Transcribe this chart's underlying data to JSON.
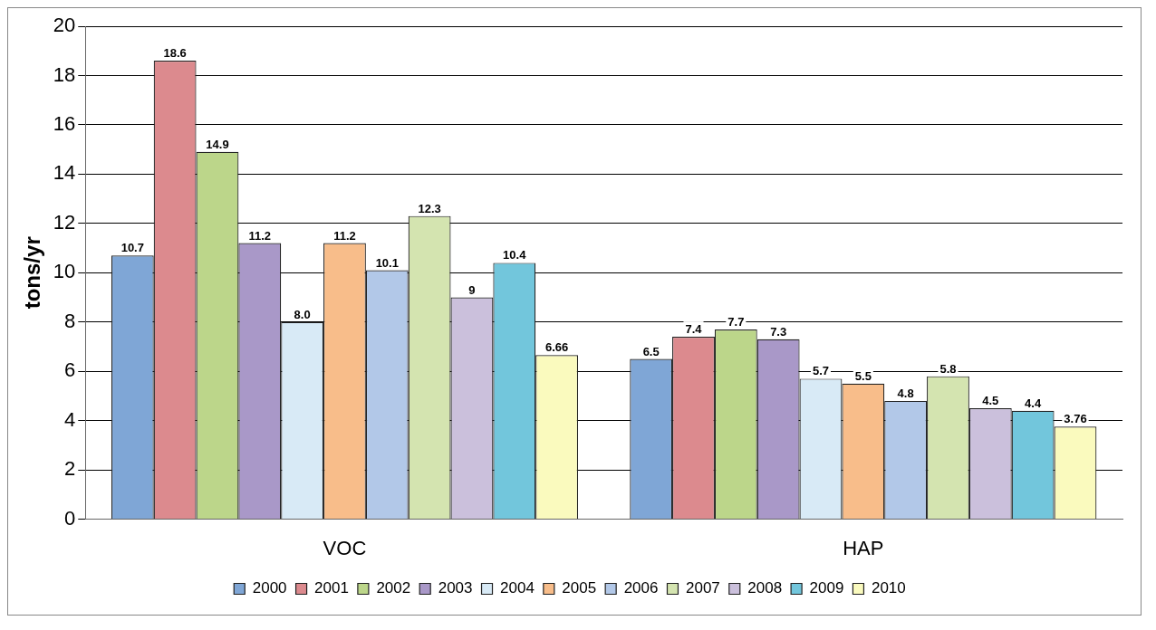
{
  "chart_data": {
    "type": "bar",
    "ylabel": "tons/yr",
    "categories": [
      "VOC",
      "HAP"
    ],
    "ylim": [
      0,
      20
    ],
    "yticks": [
      0,
      2,
      4,
      6,
      8,
      10,
      12,
      14,
      16,
      18,
      20
    ],
    "grid": "y",
    "legend": "bottom",
    "series": [
      {
        "name": "2000",
        "color": "#7fa6d6",
        "values": [
          10.7,
          6.5
        ],
        "value_labels": [
          "10.7",
          "6.5"
        ]
      },
      {
        "name": "2001",
        "color": "#dc8a8e",
        "values": [
          18.6,
          7.4
        ],
        "value_labels": [
          "18.6",
          "7.4"
        ]
      },
      {
        "name": "2002",
        "color": "#bcd68a",
        "values": [
          14.9,
          7.7
        ],
        "value_labels": [
          "14.9",
          "7.7"
        ]
      },
      {
        "name": "2003",
        "color": "#a998c8",
        "values": [
          11.2,
          7.3
        ],
        "value_labels": [
          "11.2",
          "7.3"
        ]
      },
      {
        "name": "2004",
        "color": "#d8eaf6",
        "values": [
          8.0,
          5.7
        ],
        "value_labels": [
          "8.0",
          "5.7"
        ]
      },
      {
        "name": "2005",
        "color": "#f8bd8a",
        "values": [
          11.2,
          5.5
        ],
        "value_labels": [
          "11.2",
          "5.5"
        ]
      },
      {
        "name": "2006",
        "color": "#b2c8e8",
        "values": [
          10.1,
          4.8
        ],
        "value_labels": [
          "10.1",
          "4.8"
        ]
      },
      {
        "name": "2007",
        "color": "#d4e4b0",
        "values": [
          12.3,
          5.8
        ],
        "value_labels": [
          "12.3",
          "5.8"
        ]
      },
      {
        "name": "2008",
        "color": "#cbc0dc",
        "values": [
          9,
          4.5
        ],
        "value_labels": [
          "9",
          "4.5"
        ]
      },
      {
        "name": "2009",
        "color": "#72c6dc",
        "values": [
          10.4,
          4.4
        ],
        "value_labels": [
          "10.4",
          "4.4"
        ]
      },
      {
        "name": "2010",
        "color": "#fafabe",
        "values": [
          6.66,
          3.76
        ],
        "value_labels": [
          "6.66",
          "3.76"
        ]
      }
    ]
  }
}
